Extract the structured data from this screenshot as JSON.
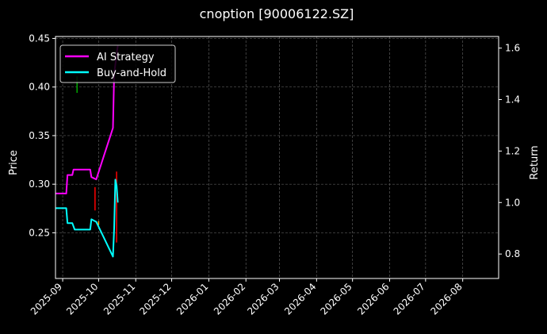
{
  "chart_data": {
    "type": "line",
    "title": "cnoption [90006122.SZ]",
    "ylabel": "Price",
    "y2label": "Return",
    "xlim": [
      "2025-08-26",
      "2026-08-31"
    ],
    "ylim": [
      0.203,
      0.452
    ],
    "y2lim": [
      0.705,
      1.645
    ],
    "x_ticks": [
      "2025-09",
      "2025-10",
      "2025-11",
      "2025-12",
      "2026-01",
      "2026-02",
      "2026-03",
      "2026-04",
      "2026-05",
      "2026-06",
      "2026-07",
      "2026-08"
    ],
    "y_ticks": [
      0.25,
      0.3,
      0.35,
      0.4,
      0.45
    ],
    "y_tick_labels": [
      "0.25",
      "0.30",
      "0.35",
      "0.40",
      "0.45"
    ],
    "y2_ticks": [
      0.8,
      1.0,
      1.2,
      1.4,
      1.6
    ],
    "y2_tick_labels": [
      "0.8",
      "1.0",
      "1.2",
      "1.4",
      "1.6"
    ],
    "grid": true,
    "legend_position": "top-left",
    "series": [
      {
        "name": "AI Strategy",
        "color": "#ff00ff",
        "axis": "right",
        "x": [
          "2025-08-26",
          "2025-09-04",
          "2025-09-05",
          "2025-09-08",
          "2025-09-09",
          "2025-09-10",
          "2025-09-15",
          "2025-09-24",
          "2025-09-25",
          "2025-09-29",
          "2025-10-13",
          "2025-10-14",
          "2025-10-17"
        ],
        "values": [
          1.035,
          1.035,
          1.107,
          1.107,
          1.107,
          1.128,
          1.128,
          1.128,
          1.099,
          1.09,
          1.29,
          1.5,
          1.61
        ]
      },
      {
        "name": "Buy-and-Hold",
        "color": "#00ffff",
        "axis": "right",
        "x": [
          "2025-08-26",
          "2025-09-04",
          "2025-09-05",
          "2025-09-08",
          "2025-09-09",
          "2025-09-11",
          "2025-09-15",
          "2025-09-24",
          "2025-09-25",
          "2025-09-29",
          "2025-10-13",
          "2025-10-14",
          "2025-10-15",
          "2025-10-16",
          "2025-10-17"
        ],
        "values": [
          0.978,
          0.978,
          0.92,
          0.92,
          0.92,
          0.895,
          0.895,
          0.895,
          0.935,
          0.925,
          0.79,
          0.9,
          1.089,
          1.065,
          1.0
        ]
      }
    ],
    "candles": [
      {
        "x": "2025-09-13",
        "low": 0.394,
        "high": 0.411,
        "color": "#00aa00"
      },
      {
        "x": "2025-09-28",
        "low": 0.273,
        "high": 0.297,
        "color": "#ff0000"
      },
      {
        "x": "2025-10-01",
        "low": 0.258,
        "high": 0.262,
        "color": "#ffaa00"
      },
      {
        "x": "2025-10-16",
        "low": 0.24,
        "high": 0.313,
        "color": "#ff0000"
      }
    ]
  }
}
